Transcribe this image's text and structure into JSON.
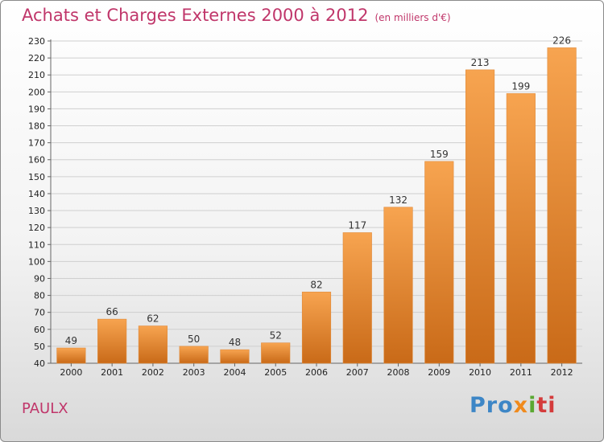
{
  "header": {
    "title": "Achats et Charges Externes 2000 à 2012",
    "subtitle": "(en milliers d'€)"
  },
  "footer": {
    "place": "PAULX",
    "logo_parts": [
      "Pro",
      "x",
      "i",
      "ti"
    ]
  },
  "colors": {
    "title": "#c0366a",
    "bar_light": "#f7a450",
    "bar_dark": "#c96a18",
    "grid": "#cfcfcf"
  },
  "chart_data": {
    "type": "bar",
    "title": "Achats et Charges Externes 2000 à 2012",
    "subtitle": "(en milliers d'€)",
    "categories": [
      "2000",
      "2001",
      "2002",
      "2003",
      "2004",
      "2005",
      "2006",
      "2007",
      "2008",
      "2009",
      "2010",
      "2011",
      "2012"
    ],
    "values": [
      49,
      66,
      62,
      50,
      48,
      52,
      82,
      117,
      132,
      159,
      213,
      199,
      226
    ],
    "xlabel": "",
    "ylabel": "",
    "ylim": [
      40,
      230
    ],
    "ytick_step": 10,
    "grid": true,
    "legend": "none"
  }
}
